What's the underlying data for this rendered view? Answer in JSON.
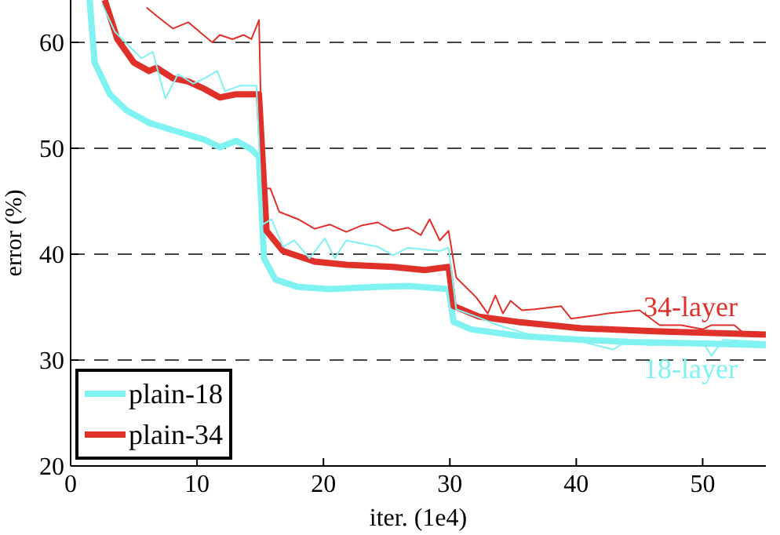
{
  "chart_data": {
    "type": "line",
    "xlabel": "iter. (1e4)",
    "ylabel": "error (%)",
    "xlim": [
      0,
      55
    ],
    "ylim": [
      20,
      64
    ],
    "xticks": [
      0,
      10,
      20,
      30,
      40,
      50
    ],
    "yticks": [
      20,
      30,
      40,
      50,
      60
    ],
    "grid": "y",
    "legend": "bottom left",
    "line_style": "solid",
    "marker": "none",
    "annotations": [
      "18-layer",
      "34-layer"
    ],
    "series": [
      {
        "name": "plain-18",
        "color": "#80f2f2",
        "x": [
          1.5,
          1.9,
          3.1,
          4.4,
          6.2,
          8.1,
          10.6,
          11.8,
          13.1,
          14.3,
          14.9,
          15.3,
          16.2,
          18,
          20.5,
          24.3,
          26.7,
          29.9,
          30.3,
          31.7,
          35.4,
          39.2,
          44.2,
          49.1,
          55
        ],
        "values": [
          64,
          58.1,
          55.1,
          53.6,
          52.4,
          51.7,
          50.8,
          50.1,
          50.7,
          49.9,
          49.2,
          39.6,
          37.6,
          36.9,
          36.7,
          36.9,
          37,
          36.7,
          33.6,
          32.9,
          32.3,
          32,
          31.7,
          31.6,
          31.4
        ]
      },
      {
        "name": "plain-34",
        "color": "#e0302a",
        "x": [
          2.7,
          3.7,
          5,
          6.2,
          6.8,
          8.1,
          9.3,
          10.6,
          11.8,
          13.1,
          14.9,
          15.5,
          16.8,
          19.3,
          21.8,
          25.5,
          28,
          29.9,
          30.3,
          32.3,
          35.4,
          40.4,
          46.6,
          55
        ],
        "values": [
          64,
          60.3,
          58.1,
          57.3,
          57.6,
          56.6,
          56.3,
          55.6,
          54.8,
          55.1,
          55.1,
          42.2,
          40.3,
          39.3,
          39,
          38.8,
          38.5,
          38.8,
          35.1,
          34.1,
          33.6,
          33,
          32.7,
          32.4
        ]
      },
      {
        "color": "#80f2f2",
        "x": [
          2.5,
          3.5,
          5.6,
          6.5,
          7.5,
          8.5,
          9.7,
          10.6,
          11.6,
          12.2,
          13.4,
          14.7,
          15.2,
          15.9,
          16.8,
          17.7,
          18.9,
          20.1,
          20.9,
          21.8,
          24.3,
          25.5,
          26.7,
          29.2,
          29.9,
          30.5,
          32.1,
          33.8,
          36.3,
          39.2,
          42.9,
          44.2,
          45.8,
          50,
          50.7,
          51.6,
          55
        ],
        "values": [
          63.6,
          61,
          58.5,
          59.1,
          54.7,
          57,
          56.1,
          56.6,
          57.3,
          55.4,
          55.9,
          55.9,
          42.8,
          43.3,
          40.7,
          41.3,
          39.6,
          41.5,
          39.6,
          41.3,
          40.7,
          39.9,
          40.6,
          40.3,
          40.6,
          34.8,
          34.1,
          33.3,
          32.4,
          32.1,
          31,
          31.9,
          31.4,
          31.7,
          30.4,
          31.9,
          31.7
        ]
      },
      {
        "color": "#e0302a",
        "x": [
          6,
          6.8,
          8.1,
          9.3,
          11.2,
          11.8,
          12.8,
          13.7,
          14.3,
          14.9,
          15.2,
          15.8,
          16.5,
          18,
          19.3,
          20.5,
          21.8,
          23,
          24.3,
          25.5,
          26.7,
          27.7,
          28.4,
          29.2,
          29.9,
          30.5,
          32.1,
          33,
          33.6,
          34.2,
          34.8,
          35.7,
          36.7,
          38.8,
          39.6,
          42.5,
          45,
          46.6,
          48.3,
          50,
          50.7,
          52.5,
          53.2,
          55
        ],
        "values": [
          63.3,
          62.5,
          61.3,
          61.9,
          60,
          60.7,
          60.3,
          60.7,
          60.3,
          62.1,
          46.2,
          46.2,
          44,
          43.3,
          42.4,
          42.8,
          42.1,
          42.7,
          43,
          42.2,
          42.5,
          41.8,
          43.3,
          41.3,
          42.2,
          37.8,
          35.9,
          34.4,
          36.1,
          34.4,
          35.6,
          34.7,
          34.8,
          35.1,
          33.9,
          34.4,
          34.7,
          33.3,
          33.3,
          32.9,
          33.3,
          33.3,
          32.6,
          32.4
        ]
      }
    ]
  }
}
